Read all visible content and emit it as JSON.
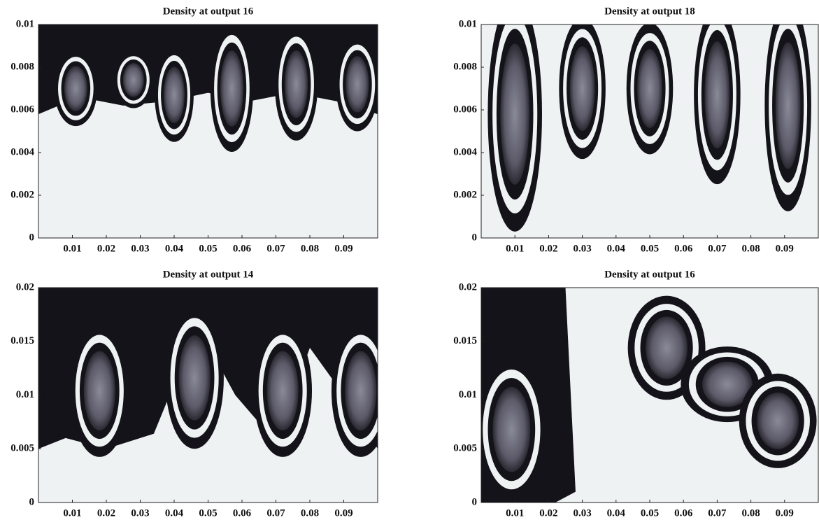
{
  "chart_data": [
    {
      "type": "image",
      "title": "Density at output 16",
      "xlim": [
        0,
        0.1
      ],
      "xticks": [
        0.01,
        0.02,
        0.03,
        0.04,
        0.05,
        0.06,
        0.07,
        0.08,
        0.09
      ],
      "ylim": [
        0,
        0.01
      ],
      "yticks": [
        0,
        0.002,
        0.004,
        0.006,
        0.008,
        0.01
      ]
    },
    {
      "type": "image",
      "title": "Density at output 18",
      "xlim": [
        0,
        0.1
      ],
      "xticks": [
        0.01,
        0.02,
        0.03,
        0.04,
        0.05,
        0.06,
        0.07,
        0.08,
        0.09
      ],
      "ylim": [
        0,
        0.01
      ],
      "yticks": [
        0,
        0.002,
        0.004,
        0.006,
        0.008,
        0.01
      ]
    },
    {
      "type": "image",
      "title": "Density at output 14",
      "xlim": [
        0,
        0.1
      ],
      "xticks": [
        0.01,
        0.02,
        0.03,
        0.04,
        0.05,
        0.06,
        0.07,
        0.08,
        0.09
      ],
      "ylim": [
        0,
        0.02
      ],
      "yticks": [
        0,
        0.005,
        0.01,
        0.015,
        0.02
      ]
    },
    {
      "type": "image",
      "title": "Density at output 16",
      "xlim": [
        0,
        0.1
      ],
      "xticks": [
        0.01,
        0.02,
        0.03,
        0.04,
        0.05,
        0.06,
        0.07,
        0.08,
        0.09
      ],
      "ylim": [
        0,
        0.02
      ],
      "yticks": [
        0,
        0.005,
        0.01,
        0.015,
        0.02
      ]
    }
  ]
}
